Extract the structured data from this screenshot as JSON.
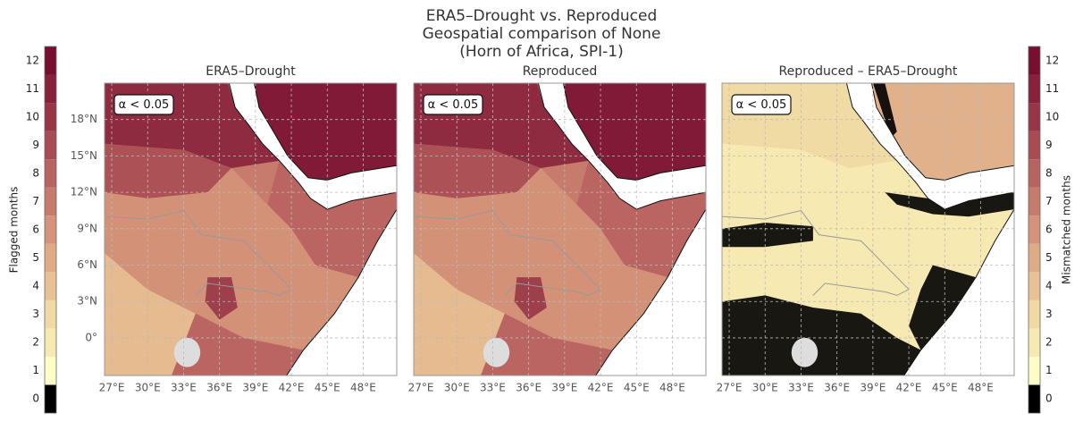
{
  "title": [
    "ERA5–Drought vs. Reproduced",
    "Geospatial comparison of None",
    "(Horn of Africa, SPI-1)"
  ],
  "panels": [
    {
      "title": "ERA5–Drought",
      "annotation": "α < 0.05"
    },
    {
      "title": "Reproduced",
      "annotation": "α < 0.05"
    },
    {
      "title": "Reproduced – ERA5–Drought",
      "annotation": "α < 0.05"
    }
  ],
  "xlim": [
    26.4,
    50.8
  ],
  "ylim": [
    -3.1,
    21
  ],
  "lon_ticks": [
    {
      "value": 27,
      "label": "27°E"
    },
    {
      "value": 30,
      "label": "30°E"
    },
    {
      "value": 33,
      "label": "33°E"
    },
    {
      "value": 36,
      "label": "36°E"
    },
    {
      "value": 39,
      "label": "39°E"
    },
    {
      "value": 42,
      "label": "42°E"
    },
    {
      "value": 45,
      "label": "45°E"
    },
    {
      "value": 48,
      "label": "48°E"
    }
  ],
  "lat_ticks": [
    {
      "value": 18,
      "label": "18°N"
    },
    {
      "value": 15,
      "label": "15°N"
    },
    {
      "value": 12,
      "label": "12°N"
    },
    {
      "value": 9,
      "label": "9°N"
    },
    {
      "value": 6,
      "label": "6°N"
    },
    {
      "value": 3,
      "label": "3°N"
    },
    {
      "value": 0,
      "label": "0°"
    }
  ],
  "grid": true,
  "colorbars": [
    {
      "label": "Flagged months",
      "side": "left",
      "lim": [
        -0.5,
        12.5
      ],
      "ticks": [
        0,
        1,
        2,
        3,
        4,
        5,
        6,
        7,
        8,
        9,
        10,
        11,
        12
      ],
      "colors": [
        "#000000",
        "#fdfdc8",
        "#f6eab2",
        "#f0d9a2",
        "#e8c294",
        "#dfab86",
        "#d4937a",
        "#c67b6c",
        "#b86360",
        "#a84c53",
        "#983647",
        "#88223c",
        "#780f31"
      ]
    },
    {
      "label": "Mismatched months",
      "side": "right",
      "lim": [
        -0.5,
        12.5
      ],
      "ticks": [
        0,
        1,
        2,
        3,
        4,
        5,
        6,
        7,
        8,
        9,
        10,
        11,
        12
      ],
      "colors": [
        "#000000",
        "#fdfdc8",
        "#f6eab2",
        "#f0d9a2",
        "#e8c294",
        "#dfab86",
        "#d4937a",
        "#c67b6c",
        "#b86360",
        "#a84c53",
        "#983647",
        "#88223c",
        "#780f31"
      ]
    }
  ]
}
